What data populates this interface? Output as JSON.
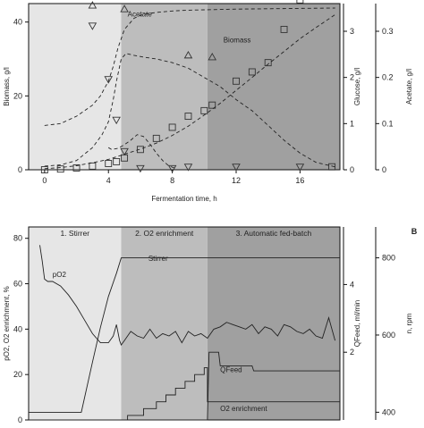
{
  "chart_data": [
    {
      "type": "scatter",
      "panel_letter": "",
      "xlabel": "Fermentation time, h",
      "x_ticks": [
        "0",
        "4",
        "8",
        "12",
        "16"
      ],
      "xlim": [
        -1,
        18.5
      ],
      "y_left": {
        "label": "Biomass, g/l",
        "ticks": [
          "0",
          "20",
          "40"
        ],
        "lim": [
          0,
          45
        ]
      },
      "y_right1": {
        "label": "Glucose, g/l",
        "ticks": [
          "0",
          "1",
          "2",
          "3"
        ],
        "lim": [
          0,
          3.6
        ]
      },
      "y_right2": {
        "label": "Acetate, g/l",
        "ticks": [
          "0",
          "0.1",
          "0.2",
          "0.3"
        ],
        "lim": [
          0,
          0.36
        ]
      },
      "phases": [
        {
          "start": -1,
          "end": 4.8,
          "color": "#e6e6e6"
        },
        {
          "start": 4.8,
          "end": 10.2,
          "color": "#bdbdbd"
        },
        {
          "start": 10.2,
          "end": 18.5,
          "color": "#a0a0a0"
        }
      ],
      "annotations": [
        {
          "text": "Acetate",
          "x": 5.2,
          "y": 41.5
        },
        {
          "text": "Biomass",
          "x": 11.2,
          "y": 34.5
        }
      ],
      "series": [
        {
          "marker": "square",
          "axis": "left",
          "x": [
            0,
            1,
            2,
            3,
            4,
            4.5,
            5,
            6,
            7,
            8,
            9,
            10,
            10.5,
            12,
            13,
            14,
            15,
            16,
            18
          ],
          "y": [
            0,
            0.2,
            0.5,
            1,
            1.7,
            2.2,
            3.2,
            5.5,
            8.5,
            11.5,
            14.5,
            16,
            17.5,
            24,
            26.5,
            29,
            38,
            46,
            0.8
          ]
        },
        {
          "marker": "triangle-up",
          "axis": "left",
          "x": [
            3,
            5,
            9,
            10.5
          ],
          "y": [
            44.5,
            43.5,
            31,
            30.5
          ]
        },
        {
          "marker": "triangle-down",
          "axis": "left",
          "x": [
            3,
            4,
            4.5,
            5,
            6,
            8,
            9,
            12,
            16
          ],
          "y": [
            39,
            24.5,
            13.5,
            5,
            0.4,
            0.4,
            0.8,
            0.8,
            0.8
          ]
        },
        {
          "line": "dashed",
          "axis": "left",
          "x": [
            0,
            1,
            2,
            3,
            3.6,
            4,
            4.3,
            4.5,
            4.8,
            5.1,
            5.6,
            6.2,
            7,
            8,
            9,
            10,
            11,
            12,
            13,
            14,
            15,
            16,
            17,
            18.2
          ],
          "y": [
            1,
            1.3,
            2.5,
            6,
            9.5,
            13,
            19,
            24,
            30,
            31.5,
            31,
            30.5,
            30,
            29,
            27.5,
            25,
            22.5,
            19,
            16,
            12,
            8,
            4.5,
            2,
            0.8
          ]
        },
        {
          "line": "dashed",
          "axis": "left",
          "x": [
            0,
            1,
            2,
            3,
            4,
            4.5,
            5,
            6,
            7,
            8,
            9,
            10,
            11,
            12,
            13,
            14,
            15,
            16,
            17,
            18.2
          ],
          "y": [
            0.3,
            0.6,
            1.1,
            1.9,
            2.8,
            3.5,
            4.2,
            5.6,
            7.2,
            9.3,
            11.8,
            14.8,
            18,
            21.5,
            25,
            28.6,
            32,
            35.5,
            38.5,
            42
          ]
        },
        {
          "line": "dashed",
          "axis": "left",
          "x": [
            0,
            1,
            2,
            3,
            3.5,
            4,
            4.3,
            4.6,
            5,
            5.6,
            6,
            6.5,
            7,
            8,
            9,
            10,
            12,
            14,
            16,
            18.2
          ],
          "y": [
            12,
            12.5,
            14.5,
            17.5,
            20,
            24,
            28,
            33,
            38,
            41,
            41.8,
            42.3,
            42.6,
            43,
            43.2,
            43.3,
            43.5,
            43.6,
            43.7,
            43.8
          ]
        },
        {
          "line": "dashed",
          "axis": "left",
          "x": [
            4,
            4.2,
            4.6,
            5,
            5.4,
            5.8,
            6.2,
            6.6,
            7,
            7.4,
            7.8,
            8.2
          ],
          "y": [
            6,
            5.5,
            5.8,
            6.8,
            8,
            9.5,
            9,
            7,
            4.5,
            2.5,
            1,
            0.4
          ]
        }
      ]
    },
    {
      "type": "line",
      "panel_letter": "B",
      "xlabel": "",
      "xlim": [
        -1,
        18.5
      ],
      "y_left": {
        "label": "pO2, O2 enrichment, %",
        "ticks": [
          "0",
          "20",
          "40",
          "60",
          "80"
        ],
        "lim": [
          0,
          85
        ]
      },
      "y_right1": {
        "label": "QFeed, ml/min",
        "ticks": [
          "2",
          "4"
        ],
        "lim": [
          0,
          5.7
        ]
      },
      "y_right2": {
        "label": "n, rpm",
        "ticks": [
          "400",
          "600",
          "800"
        ],
        "lim": [
          380,
          880
        ]
      },
      "phases": [
        {
          "start": -1,
          "end": 4.8,
          "color": "#e6e6e6",
          "label": "1. Stirrer"
        },
        {
          "start": 4.8,
          "end": 10.2,
          "color": "#bdbdbd",
          "label": "2. O2 enrichment"
        },
        {
          "start": 10.2,
          "end": 18.5,
          "color": "#a0a0a0",
          "label": "3. Automatic fed-batch"
        }
      ],
      "annotations": [
        {
          "text": "pO2",
          "x": 0.5,
          "y": 63
        },
        {
          "text": "Stirrer",
          "x": 6.5,
          "y": 70
        },
        {
          "text": "QFeed",
          "x": 11,
          "y": 21
        },
        {
          "text": "O2 enrichment",
          "x": 11,
          "y": 4
        }
      ],
      "series": [
        {
          "name": "pO2",
          "axis": "left",
          "x": [
            -0.3,
            -0.15,
            0,
            0.2,
            0.5,
            1.0,
            1.5,
            2.0,
            2.5,
            3.0,
            3.5,
            4.0,
            4.3,
            4.5,
            4.7,
            4.8,
            5.0,
            5.4,
            5.8,
            6.2,
            6.6,
            7.0,
            7.4,
            7.8,
            8.2,
            8.6,
            9.0,
            9.4,
            9.8,
            10.2,
            10.6,
            11.0,
            11.4,
            11.8,
            12.2,
            12.6,
            13.0,
            13.4,
            13.8,
            14.2,
            14.6,
            15.0,
            15.4,
            15.8,
            16.2,
            16.6,
            17.0,
            17.4,
            17.8,
            18.2
          ],
          "y": [
            77,
            70,
            62,
            61,
            61,
            59,
            55,
            50,
            44,
            38,
            34,
            34,
            37,
            42,
            35,
            33,
            35,
            39,
            37,
            36,
            40,
            36,
            38,
            37,
            39,
            34,
            39,
            37,
            38,
            36,
            40,
            41,
            43,
            42,
            41,
            40,
            42,
            38,
            41,
            40,
            37,
            42,
            41,
            39,
            38,
            40,
            37,
            36,
            45,
            35
          ]
        },
        {
          "name": "Stirrer",
          "axis": "right2",
          "x": [
            -1,
            2.3,
            3.0,
            3.5,
            4.0,
            4.5,
            4.8,
            18.5
          ],
          "y": [
            400,
            400,
            530,
            620,
            700,
            760,
            800,
            800
          ]
        },
        {
          "name": "QFeed",
          "axis": "right1",
          "x": [
            -1,
            10.2,
            10.3,
            10.9,
            11.0,
            13.0,
            13.1,
            18.5
          ],
          "y": [
            0,
            0,
            2.0,
            2.0,
            1.6,
            1.6,
            1.45,
            1.45
          ]
        },
        {
          "name": "O2 enrichment",
          "axis": "left",
          "x": [
            -1,
            5.2,
            5.2,
            6.2,
            6.2,
            7.0,
            7.0,
            7.6,
            7.6,
            8.2,
            8.2,
            8.8,
            8.8,
            9.4,
            9.4,
            10.0,
            10.0,
            10.2,
            10.2,
            18.5
          ],
          "y": [
            0,
            0,
            2,
            2,
            5,
            5,
            8,
            8,
            11,
            11,
            14,
            14,
            17,
            17,
            20,
            20,
            23,
            23,
            8,
            8
          ]
        }
      ]
    }
  ]
}
